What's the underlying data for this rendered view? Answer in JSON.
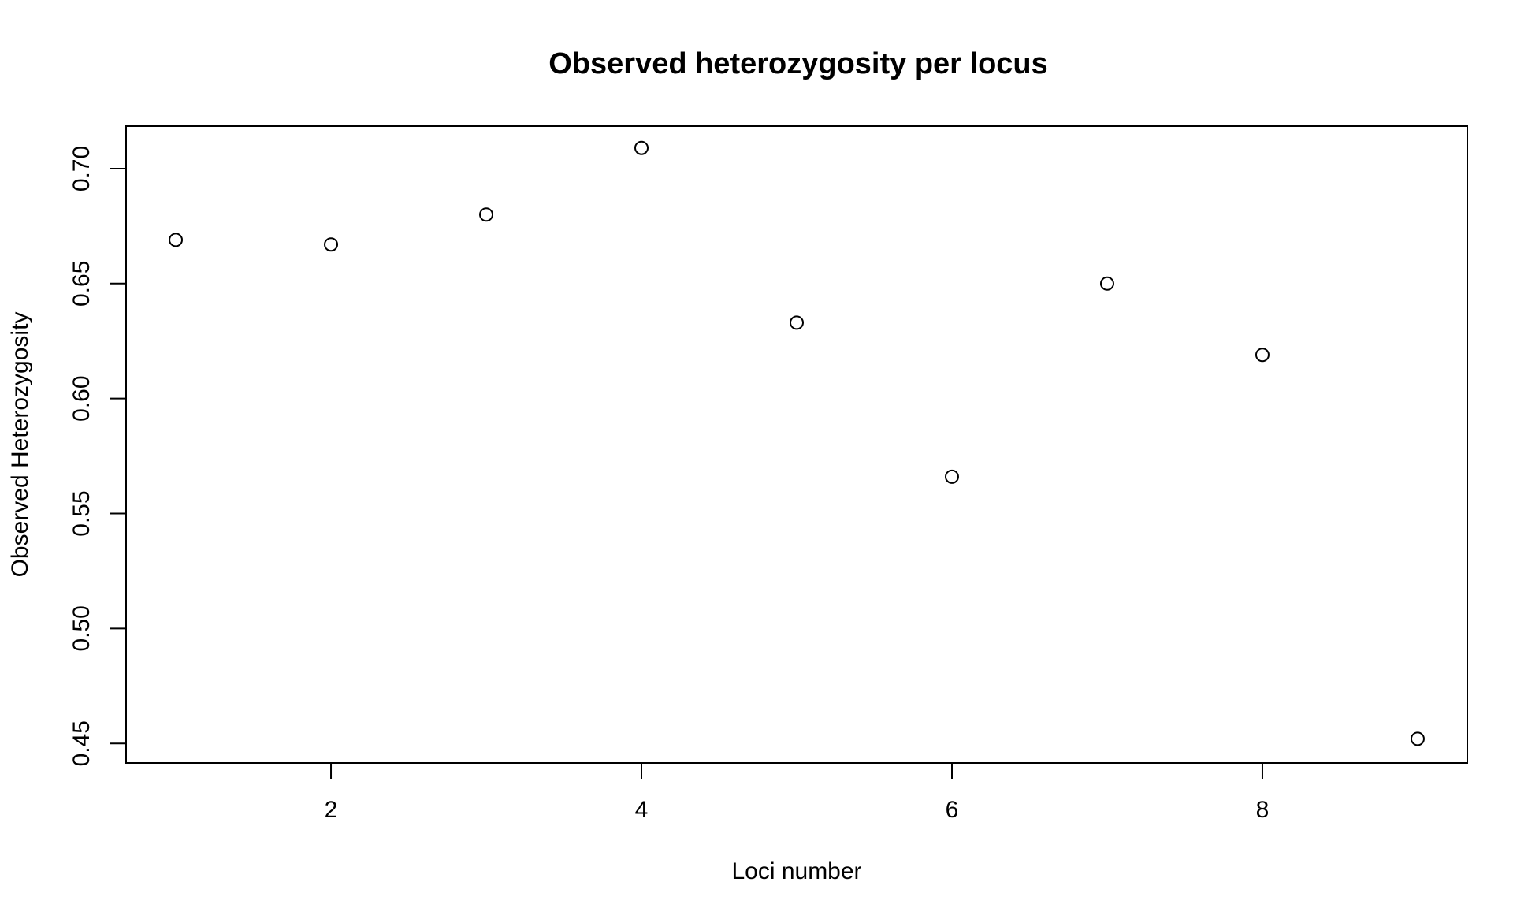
{
  "chart_data": {
    "type": "scatter",
    "title": "Observed heterozygosity per locus",
    "xlabel": "Loci number",
    "ylabel": "Observed Heterozygosity",
    "x": [
      1,
      2,
      3,
      4,
      5,
      6,
      7,
      8,
      9
    ],
    "y": [
      0.669,
      0.667,
      0.68,
      0.709,
      0.633,
      0.566,
      0.65,
      0.619,
      0.452
    ],
    "xlim": [
      0.68,
      9.32
    ],
    "ylim": [
      0.4415,
      0.7185
    ],
    "xticks": [
      2,
      4,
      6,
      8
    ],
    "xtick_labels": [
      "2",
      "4",
      "6",
      "8"
    ],
    "yticks": [
      0.45,
      0.5,
      0.55,
      0.6,
      0.65,
      0.7
    ],
    "ytick_labels": [
      "0.45",
      "0.50",
      "0.55",
      "0.60",
      "0.65",
      "0.70"
    ],
    "marker": "open-circle",
    "grid": false,
    "legend": "none",
    "colors": {
      "foreground": "#000000",
      "background": "#ffffff"
    }
  }
}
